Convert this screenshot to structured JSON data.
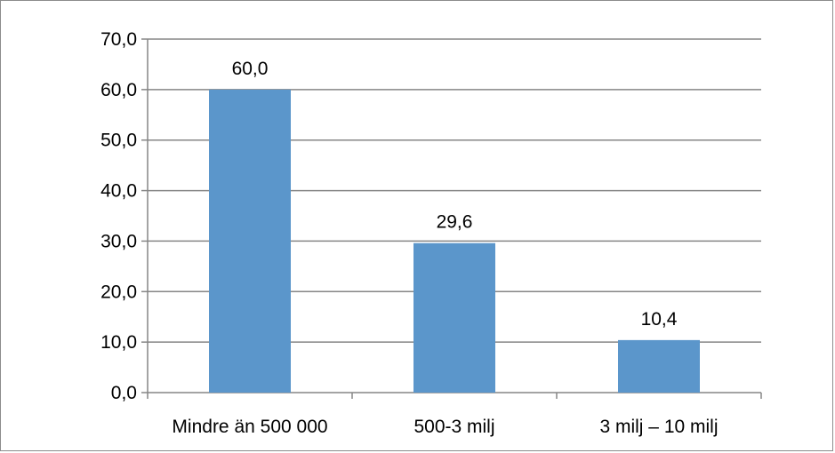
{
  "chart_data": {
    "type": "bar",
    "title": "",
    "xlabel": "",
    "ylabel": "",
    "categories": [
      "Mindre än 500 000",
      "500-3  milj",
      "3 milj – 10 milj"
    ],
    "values": [
      60.0,
      29.6,
      10.4
    ],
    "data_labels": [
      "60,0",
      "29,6",
      "10,4"
    ],
    "y_ticks": [
      "0,0",
      "10,0",
      "20,0",
      "30,0",
      "40,0",
      "50,0",
      "60,0",
      "70,0"
    ],
    "ylim": [
      0,
      70
    ],
    "y_step": 10,
    "grid": true,
    "legend": "none",
    "bar_color": "#5b96cb"
  }
}
